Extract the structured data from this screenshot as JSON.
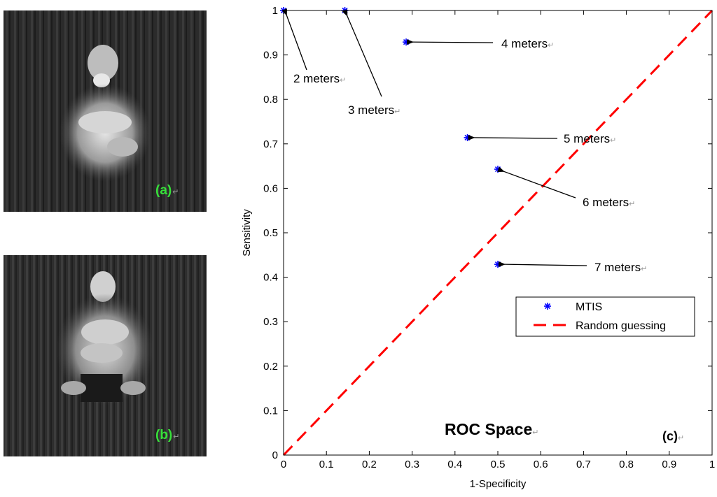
{
  "panels": {
    "a": {
      "label": "(a)",
      "return_mark": "↵"
    },
    "b": {
      "label": "(b)",
      "return_mark": "↵"
    }
  },
  "chart_data": {
    "type": "scatter",
    "title": "ROC Space",
    "panel_label": "(c)",
    "return_mark": "↵",
    "xlabel": "1-Specificity",
    "ylabel": "Sensitivity",
    "xlim": [
      0,
      1
    ],
    "ylim": [
      0,
      1
    ],
    "xticks": [
      "0",
      "0.1",
      "0.2",
      "0.3",
      "0.4",
      "0.5",
      "0.6",
      "0.7",
      "0.8",
      "0.9",
      "1"
    ],
    "yticks": [
      "0",
      "0.1",
      "0.2",
      "0.3",
      "0.4",
      "0.5",
      "0.6",
      "0.7",
      "0.8",
      "0.9",
      "1"
    ],
    "series": [
      {
        "name": "MTIS",
        "marker": "*",
        "color": "#0000ff",
        "points": [
          {
            "x": 0.0,
            "y": 1.0,
            "label": "2 meters"
          },
          {
            "x": 0.143,
            "y": 1.0,
            "label": "3 meters"
          },
          {
            "x": 0.286,
            "y": 0.929,
            "label": "4 meters"
          },
          {
            "x": 0.429,
            "y": 0.714,
            "label": "5 meters"
          },
          {
            "x": 0.5,
            "y": 0.643,
            "label": "6 meters"
          },
          {
            "x": 0.5,
            "y": 0.429,
            "label": "7 meters"
          }
        ]
      },
      {
        "name": "Random guessing",
        "line_style": "dashed",
        "color": "#ff0000",
        "x": [
          0,
          1
        ],
        "y": [
          0,
          1
        ]
      }
    ],
    "legend_position": "lower-right"
  }
}
